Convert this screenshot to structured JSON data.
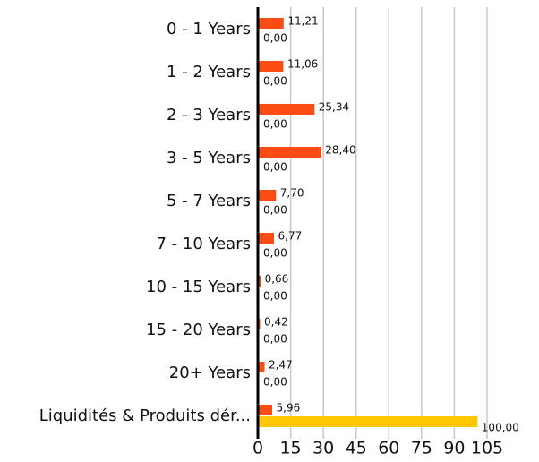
{
  "chart_data": {
    "type": "bar",
    "orientation": "horizontal",
    "categories": [
      "0 - 1 Years",
      "1 - 2 Years",
      "2 - 3 Years",
      "3 - 5 Years",
      "5 - 7 Years",
      "7 - 10 Years",
      "10 - 15 Years",
      "15 - 20 Years",
      "20+ Years",
      "Liquidités & Produits dér..."
    ],
    "series": [
      {
        "color": "#fc4c16",
        "values": [
          11.21,
          11.06,
          25.34,
          28.4,
          7.7,
          6.77,
          0.66,
          0.42,
          2.47,
          5.96
        ],
        "value_labels": [
          "11,21",
          "11,06",
          "25,34",
          "28,40",
          "7,70",
          "6,77",
          "0,66",
          "0,42",
          "2,47",
          "5,96"
        ]
      },
      {
        "color": "#ffc800",
        "values": [
          0,
          0,
          0,
          0,
          0,
          0,
          0,
          0,
          0,
          100
        ],
        "value_labels": [
          "0,00",
          "0,00",
          "0,00",
          "0,00",
          "0,00",
          "0,00",
          "0,00",
          "0,00",
          "0,00",
          "100,00"
        ]
      }
    ],
    "xlim": [
      0,
      105
    ],
    "xticks": [
      0,
      15,
      30,
      45,
      60,
      75,
      90,
      105
    ],
    "grid": true
  }
}
